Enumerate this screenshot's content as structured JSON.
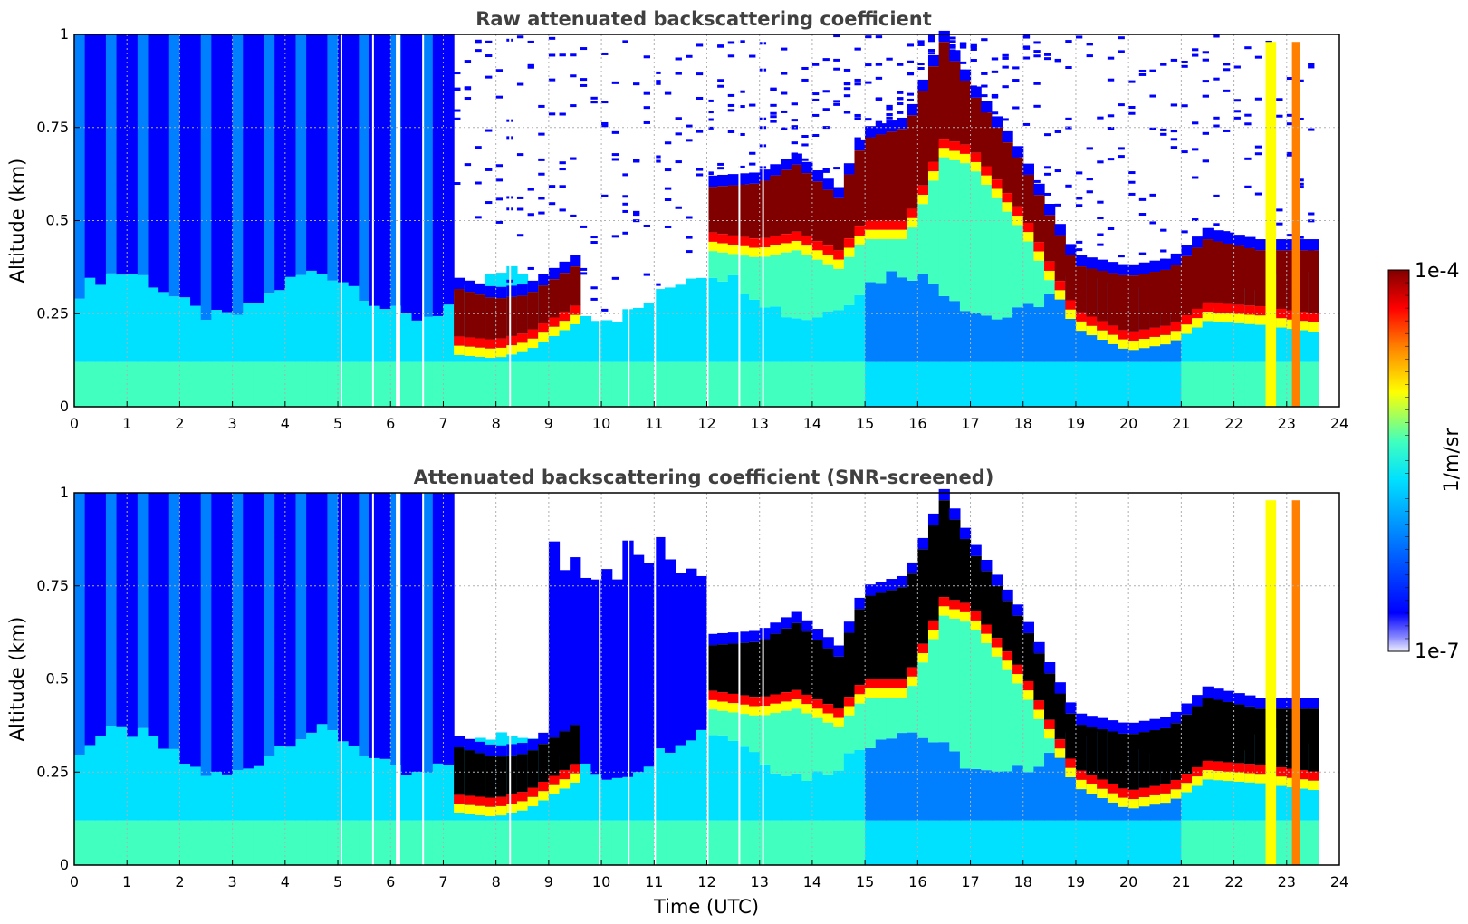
{
  "colors": {
    "jet": [
      "#00007f",
      "#0000ff",
      "#0080ff",
      "#00e0ff",
      "#40ffbf",
      "#bfff40",
      "#ffff00",
      "#ff8000",
      "#ff0000",
      "#800000"
    ],
    "screen_black": "#000000",
    "grid": "#b0b0b0",
    "title_text": "#404040"
  },
  "chart_data": [
    {
      "type": "heatmap",
      "title": "Raw attenuated backscattering coefficient",
      "xlabel": "",
      "ylabel": "Altitude (km)",
      "xlim": [
        0,
        24
      ],
      "ylim": [
        0,
        1
      ],
      "xticks": [
        "0",
        "1",
        "2",
        "3",
        "4",
        "5",
        "6",
        "7",
        "8",
        "9",
        "10",
        "11",
        "12",
        "13",
        "14",
        "15",
        "16",
        "17",
        "18",
        "19",
        "20",
        "21",
        "22",
        "23",
        "24"
      ],
      "yticks": [
        "0",
        "0.25",
        "0.5",
        "0.75",
        "1"
      ],
      "grid": true,
      "screened": false,
      "data_end_hour": 23.6,
      "gaps_hours": [
        5.05,
        5.65,
        6.1,
        6.15,
        6.6,
        8.25,
        9.95,
        10.5,
        11.0,
        12.0,
        12.6,
        13.05
      ],
      "cloud_base_km": [
        {
          "t": 7.2,
          "km": 0.19
        },
        {
          "t": 8.0,
          "km": 0.18
        },
        {
          "t": 8.6,
          "km": 0.2
        },
        {
          "t": 12.0,
          "km": 0.47
        },
        {
          "t": 13.0,
          "km": 0.45
        },
        {
          "t": 13.7,
          "km": 0.47
        },
        {
          "t": 14.5,
          "km": 0.42
        },
        {
          "t": 15.0,
          "km": 0.5
        },
        {
          "t": 15.8,
          "km": 0.5
        },
        {
          "t": 16.5,
          "km": 0.72
        },
        {
          "t": 17.0,
          "km": 0.7
        },
        {
          "t": 18.0,
          "km": 0.52
        },
        {
          "t": 19.0,
          "km": 0.26
        },
        {
          "t": 20.0,
          "km": 0.2
        },
        {
          "t": 20.8,
          "km": 0.22
        },
        {
          "t": 21.5,
          "km": 0.28
        },
        {
          "t": 22.5,
          "km": 0.27
        },
        {
          "t": 23.6,
          "km": 0.25
        }
      ],
      "cloud_top_km": [
        {
          "t": 7.2,
          "km": 0.32
        },
        {
          "t": 8.0,
          "km": 0.29
        },
        {
          "t": 8.6,
          "km": 0.3
        },
        {
          "t": 12.0,
          "km": 0.59
        },
        {
          "t": 13.0,
          "km": 0.6
        },
        {
          "t": 13.7,
          "km": 0.65
        },
        {
          "t": 14.5,
          "km": 0.56
        },
        {
          "t": 15.0,
          "km": 0.72
        },
        {
          "t": 15.8,
          "km": 0.75
        },
        {
          "t": 16.5,
          "km": 0.98
        },
        {
          "t": 17.0,
          "km": 0.85
        },
        {
          "t": 18.0,
          "km": 0.65
        },
        {
          "t": 19.0,
          "km": 0.38
        },
        {
          "t": 20.0,
          "km": 0.35
        },
        {
          "t": 20.8,
          "km": 0.37
        },
        {
          "t": 21.5,
          "km": 0.45
        },
        {
          "t": 22.5,
          "km": 0.42
        },
        {
          "t": 23.6,
          "km": 0.42
        }
      ]
    },
    {
      "type": "heatmap",
      "title": "Attenuated backscattering coefficient (SNR-screened)",
      "xlabel": "Time (UTC)",
      "ylabel": "Altitude (km)",
      "xlim": [
        0,
        24
      ],
      "ylim": [
        0,
        1
      ],
      "xticks": [
        "0",
        "1",
        "2",
        "3",
        "4",
        "5",
        "6",
        "7",
        "8",
        "9",
        "10",
        "11",
        "12",
        "13",
        "14",
        "15",
        "16",
        "17",
        "18",
        "19",
        "20",
        "21",
        "22",
        "23",
        "24"
      ],
      "yticks": [
        "0",
        "0.25",
        "0.5",
        "0.75",
        "1"
      ],
      "grid": true,
      "screened": true,
      "data_end_hour": 23.6,
      "gaps_hours": [
        5.05,
        5.65,
        6.1,
        6.15,
        6.6,
        8.25,
        9.95,
        10.5,
        11.0,
        12.0,
        12.6,
        13.05
      ],
      "cloud_base_km": [
        {
          "t": 7.2,
          "km": 0.19
        },
        {
          "t": 8.0,
          "km": 0.18
        },
        {
          "t": 8.6,
          "km": 0.2
        },
        {
          "t": 12.0,
          "km": 0.47
        },
        {
          "t": 13.0,
          "km": 0.45
        },
        {
          "t": 13.7,
          "km": 0.47
        },
        {
          "t": 14.5,
          "km": 0.42
        },
        {
          "t": 15.0,
          "km": 0.5
        },
        {
          "t": 15.8,
          "km": 0.5
        },
        {
          "t": 16.5,
          "km": 0.72
        },
        {
          "t": 17.0,
          "km": 0.7
        },
        {
          "t": 18.0,
          "km": 0.52
        },
        {
          "t": 19.0,
          "km": 0.26
        },
        {
          "t": 20.0,
          "km": 0.2
        },
        {
          "t": 20.8,
          "km": 0.22
        },
        {
          "t": 21.5,
          "km": 0.28
        },
        {
          "t": 22.5,
          "km": 0.27
        },
        {
          "t": 23.6,
          "km": 0.25
        }
      ],
      "cloud_top_km": [
        {
          "t": 7.2,
          "km": 0.32
        },
        {
          "t": 8.0,
          "km": 0.29
        },
        {
          "t": 8.6,
          "km": 0.3
        },
        {
          "t": 12.0,
          "km": 0.59
        },
        {
          "t": 13.0,
          "km": 0.6
        },
        {
          "t": 13.7,
          "km": 0.65
        },
        {
          "t": 14.5,
          "km": 0.56
        },
        {
          "t": 15.0,
          "km": 0.72
        },
        {
          "t": 15.8,
          "km": 0.75
        },
        {
          "t": 16.5,
          "km": 0.98
        },
        {
          "t": 17.0,
          "km": 0.85
        },
        {
          "t": 18.0,
          "km": 0.65
        },
        {
          "t": 19.0,
          "km": 0.38
        },
        {
          "t": 20.0,
          "km": 0.35
        },
        {
          "t": 20.8,
          "km": 0.37
        },
        {
          "t": 21.5,
          "km": 0.45
        },
        {
          "t": 22.5,
          "km": 0.42
        },
        {
          "t": 23.6,
          "km": 0.42
        }
      ]
    }
  ],
  "colorbar": {
    "label": "1/m/sr",
    "max_label": "1e-4",
    "min_label": "1e-7",
    "scale": "log",
    "range": [
      1e-07,
      0.0001
    ]
  }
}
